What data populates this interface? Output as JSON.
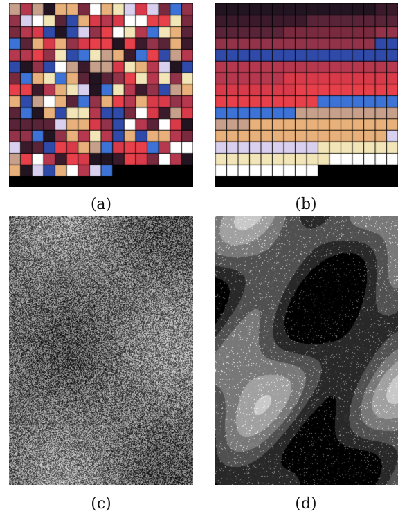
{
  "figure": {
    "panels": [
      {
        "id": "a",
        "label": "(a)",
        "kind": "palette-grid-unsorted",
        "grid": {
          "cols": 16,
          "rows": 15,
          "filled_cells_last_row": 9
        }
      },
      {
        "id": "b",
        "label": "(b)",
        "kind": "palette-grid-sorted",
        "grid": {
          "cols": 16,
          "rows": 15,
          "filled_cells_last_row": 9
        }
      },
      {
        "id": "c",
        "label": "(c)",
        "kind": "grayscale-index-map-noisy"
      },
      {
        "id": "d",
        "label": "(d)",
        "kind": "grayscale-index-map-smooth"
      }
    ],
    "palette_colors": [
      "#3b1a2c",
      "#5a2438",
      "#7a2a3e",
      "#93334a",
      "#b5384f",
      "#d83a4a",
      "#e8404a",
      "#2f4aa8",
      "#3d73d6",
      "#c7a08c",
      "#e8b07a",
      "#d9d0f0",
      "#f2e6b8",
      "#ffffff",
      "#231421"
    ]
  }
}
